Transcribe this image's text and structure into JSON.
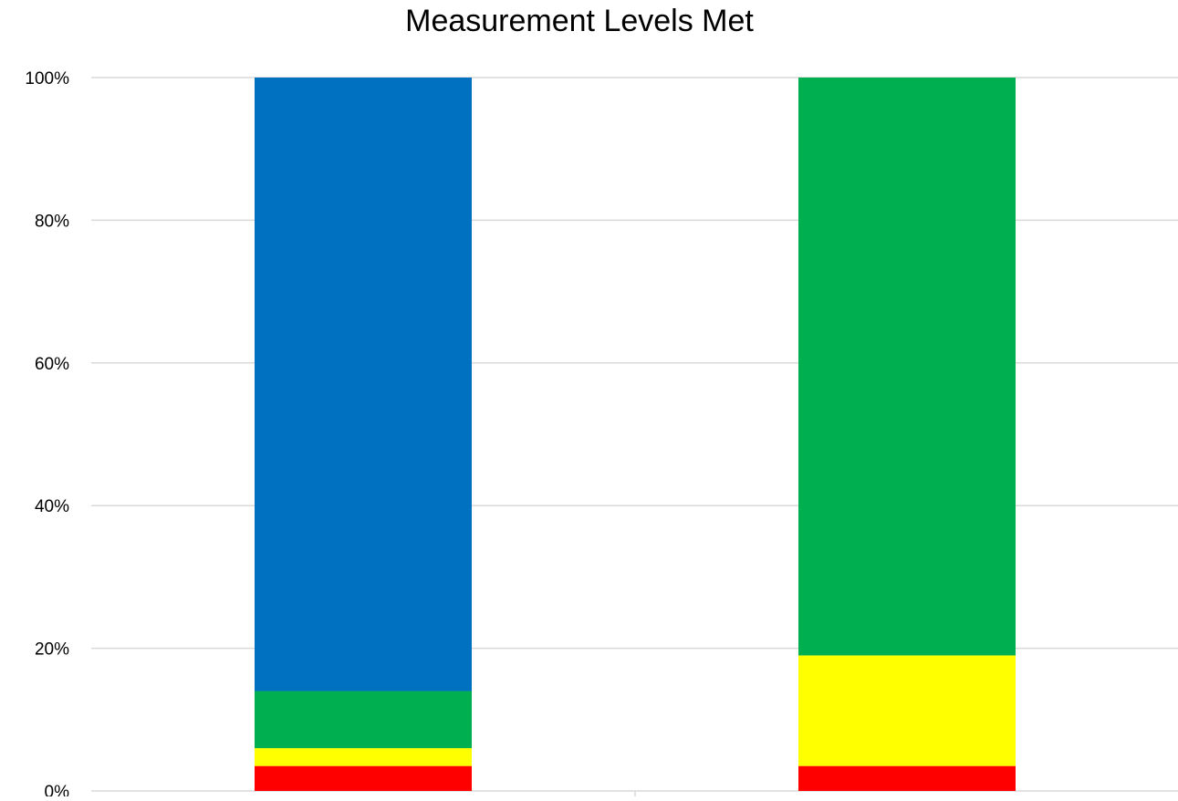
{
  "chart_data": {
    "type": "bar",
    "stacked": true,
    "title": "Measurement Levels Met",
    "xlabel": "",
    "ylabel": "",
    "ylim": [
      0,
      100
    ],
    "yticks": [
      "0%",
      "20%",
      "40%",
      "60%",
      "80%",
      "100%"
    ],
    "categories": [
      "",
      ""
    ],
    "grid": true,
    "legend": "none",
    "series": [
      {
        "color": "#ff0000",
        "values": [
          3.5,
          3.5
        ]
      },
      {
        "color": "#ffff00",
        "values": [
          2.5,
          15.5
        ]
      },
      {
        "color": "#00b050",
        "values": [
          8,
          81
        ]
      },
      {
        "color": "#0070c0",
        "values": [
          86,
          0
        ]
      }
    ]
  }
}
